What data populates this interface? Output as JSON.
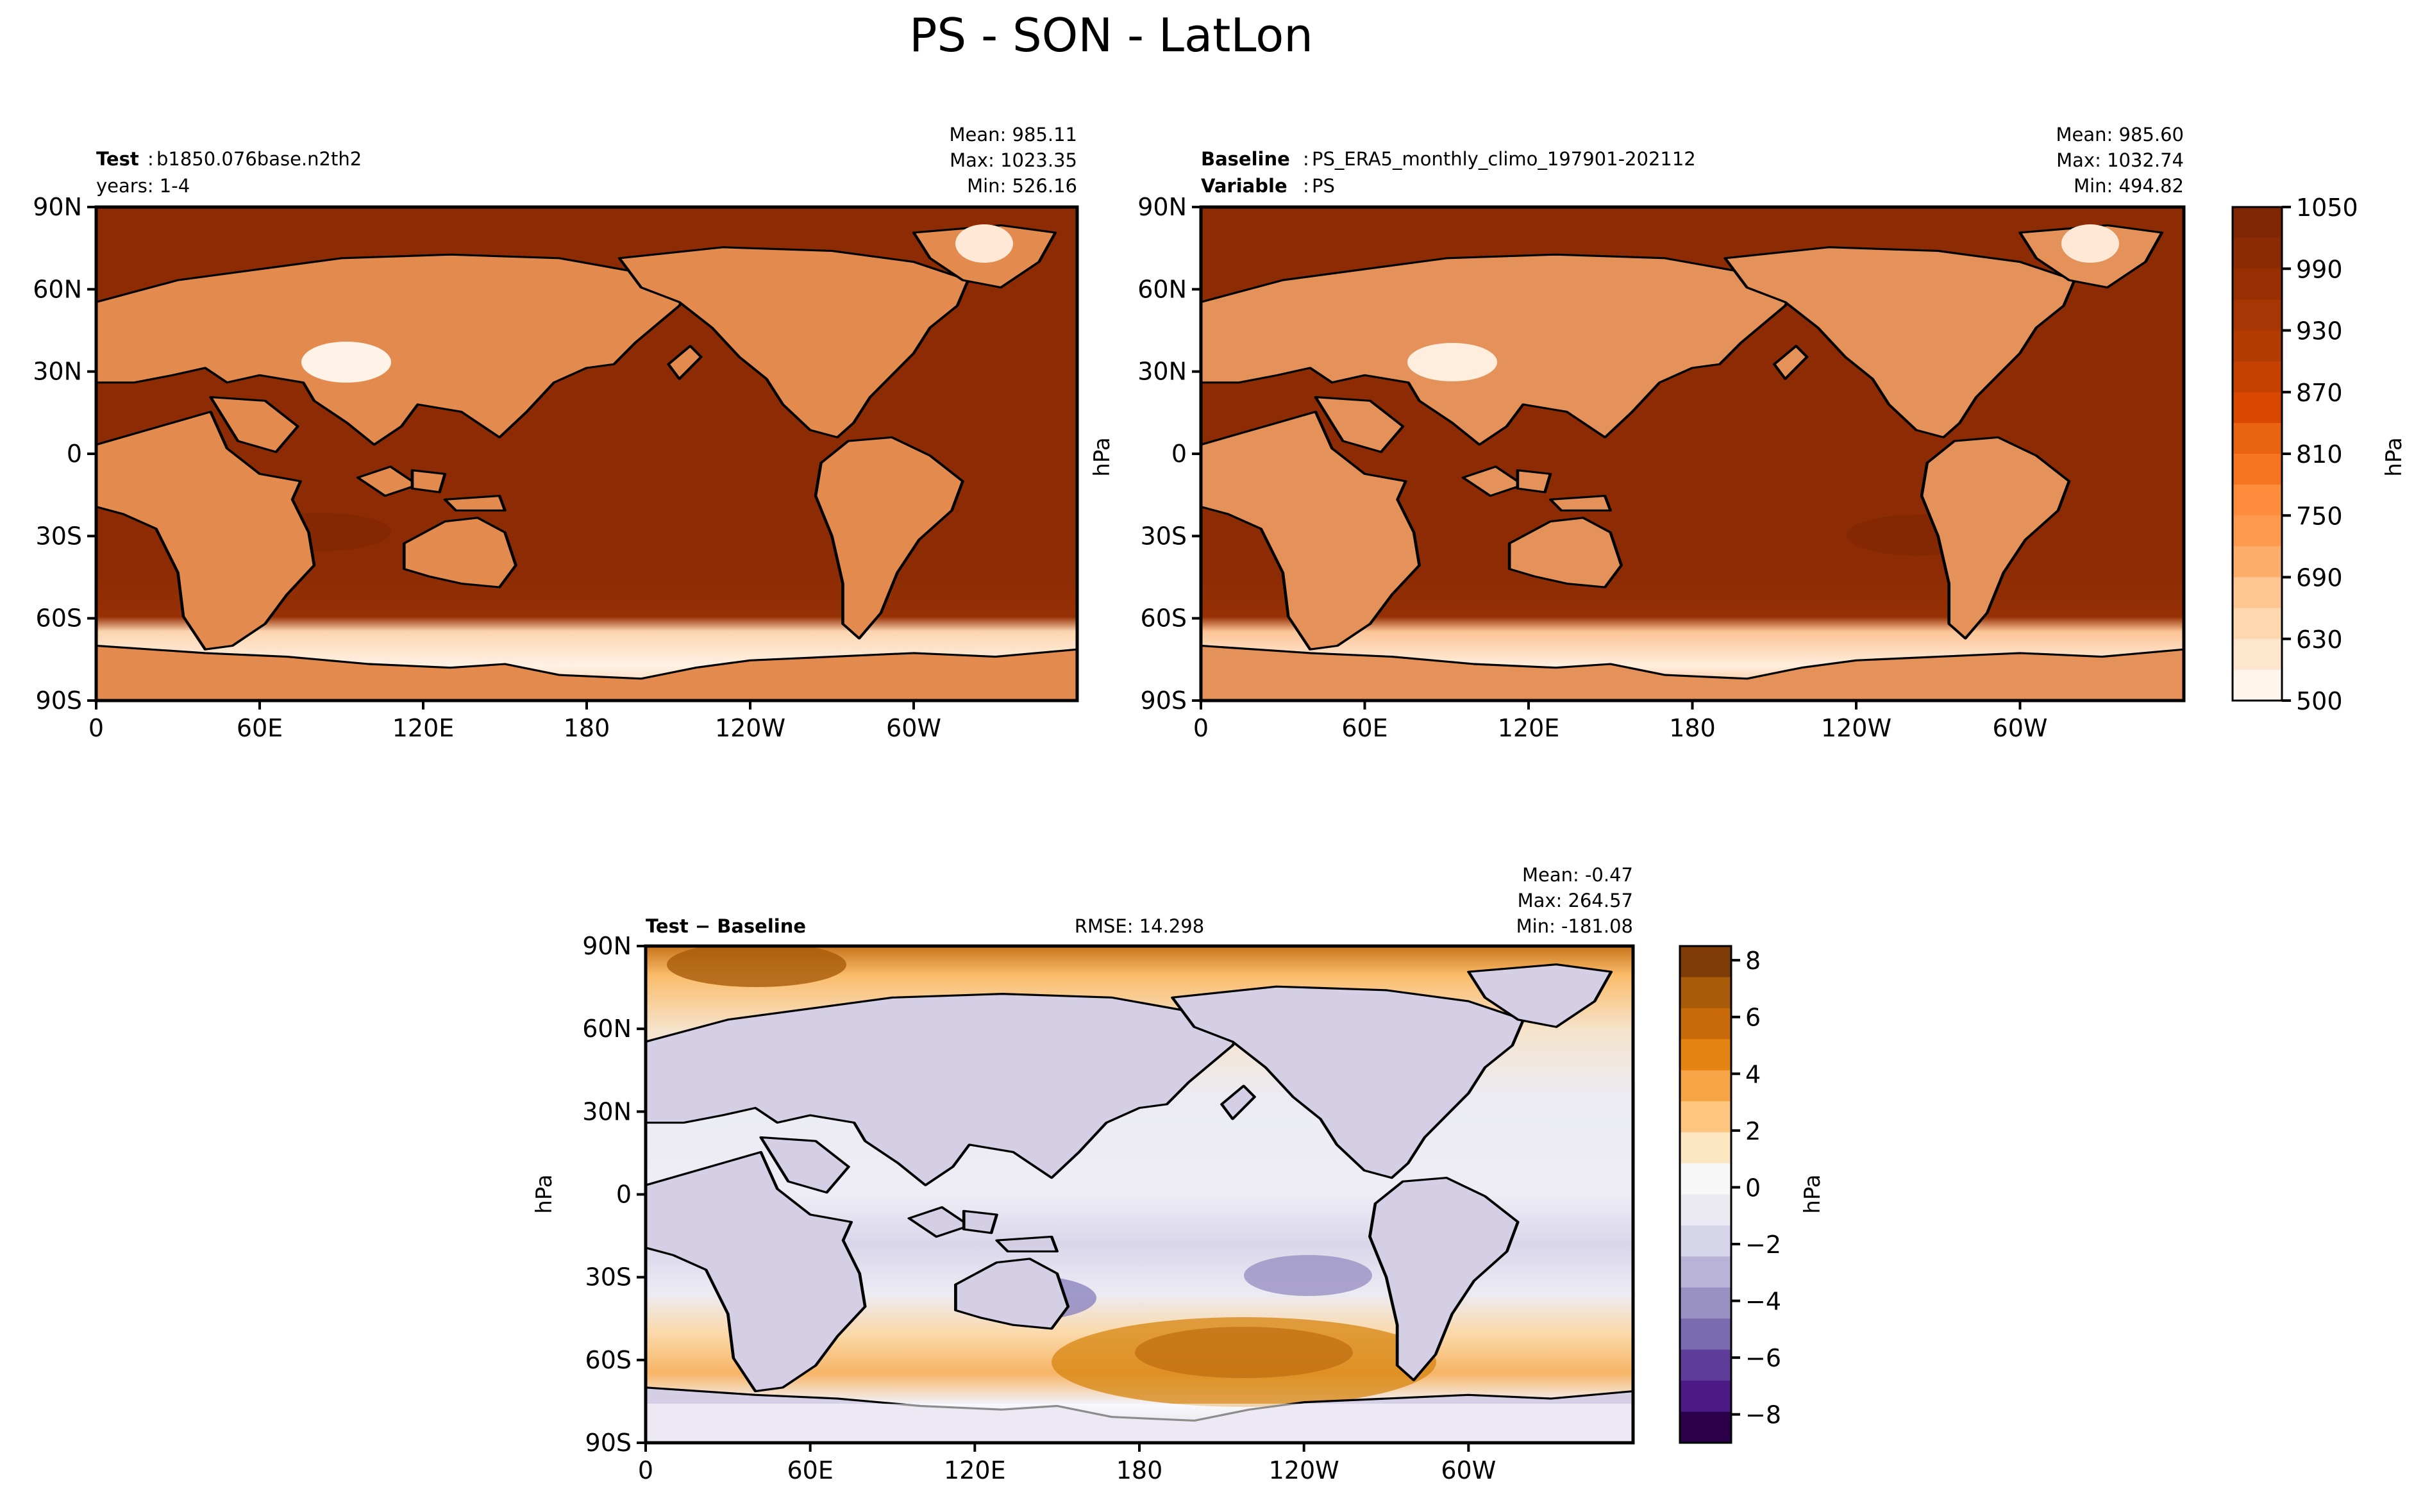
{
  "figure": {
    "title": "PS - SON - LatLon"
  },
  "colors": {
    "abs_scale": [
      "#fff5eb",
      "#fee6ce",
      "#fdd7ae",
      "#fdc692",
      "#fdae6b",
      "#fd9a4f",
      "#fd8d3c",
      "#f57521",
      "#ea6310",
      "#d94801",
      "#c44102",
      "#b13b03",
      "#a63603",
      "#982f03",
      "#8a2b04",
      "#7f2704"
    ],
    "diff_scale": [
      "#2d004b",
      "#4b1a84",
      "#5e3c99",
      "#7b6bb0",
      "#9a91c3",
      "#b8b3d7",
      "#d6d4e9",
      "#ebeaf3",
      "#f7f7f7",
      "#fde6c2",
      "#fdc67e",
      "#f6a445",
      "#e58413",
      "#c96a0a",
      "#a85b09",
      "#7f3b08"
    ],
    "land_abs": "#e38a4f",
    "land_diff": "#d5cfe6"
  },
  "panels": {
    "test": {
      "label_bold": "Test",
      "label_value": "b1850.076base.n2th2",
      "years": "years: 1-4",
      "mean": "Mean: 985.11",
      "max": "Max: 1023.35",
      "min": "Min: 526.16"
    },
    "baseline": {
      "baseline_bold": "Baseline",
      "baseline_value": "PS_ERA5_monthly_climo_197901-202112",
      "variable_bold": "Variable",
      "variable_value": "PS",
      "mean": "Mean: 985.60",
      "max": "Max: 1032.74",
      "min": "Min: 494.82",
      "ylabel": "hPa"
    },
    "diff": {
      "label_bold": "Test − Baseline",
      "rmse": "RMSE: 14.298",
      "mean": "Mean: -0.47",
      "max": "Max: 264.57",
      "min": "Min: -181.08",
      "ylabel": "hPa"
    }
  },
  "axes": {
    "lat_ticks": [
      "90N",
      "60N",
      "30N",
      "0",
      "30S",
      "60S",
      "90S"
    ],
    "lon_ticks": [
      "0",
      "60E",
      "120E",
      "180",
      "120W",
      "60W"
    ]
  },
  "colorbars": {
    "abs": {
      "label": "hPa",
      "ticks": [
        "1050",
        "990",
        "930",
        "870",
        "810",
        "750",
        "690",
        "630",
        "500"
      ]
    },
    "diff": {
      "label": "hPa",
      "ticks": [
        "8",
        "6",
        "4",
        "2",
        "0",
        "−2",
        "−4",
        "−6",
        "−8"
      ]
    }
  },
  "chart_data": [
    {
      "type": "heatmap",
      "title": "b1850.076base.n2th2",
      "variable": "PS",
      "units": "hPa",
      "xlim": [
        0,
        360
      ],
      "ylim": [
        -90,
        90
      ],
      "clim": [
        500,
        1050
      ],
      "levels": [
        500,
        630,
        690,
        750,
        810,
        870,
        930,
        990,
        1050
      ],
      "stats": {
        "mean": 985.11,
        "max": 1023.35,
        "min": 526.16
      }
    },
    {
      "type": "heatmap",
      "title": "PS_ERA5_monthly_climo_197901-202112",
      "variable": "PS",
      "units": "hPa",
      "xlim": [
        0,
        360
      ],
      "ylim": [
        -90,
        90
      ],
      "clim": [
        500,
        1050
      ],
      "levels": [
        500,
        630,
        690,
        750,
        810,
        870,
        930,
        990,
        1050
      ],
      "stats": {
        "mean": 985.6,
        "max": 1032.74,
        "min": 494.82
      }
    },
    {
      "type": "heatmap",
      "title": "Test − Baseline",
      "units": "hPa",
      "xlim": [
        0,
        360
      ],
      "ylim": [
        -90,
        90
      ],
      "clim": [
        -9,
        8.5
      ],
      "levels": [
        -8,
        -6,
        -4,
        -2,
        0,
        2,
        4,
        6,
        8
      ],
      "stats": {
        "mean": -0.47,
        "max": 264.57,
        "min": -181.08,
        "rmse": 14.298
      }
    }
  ]
}
